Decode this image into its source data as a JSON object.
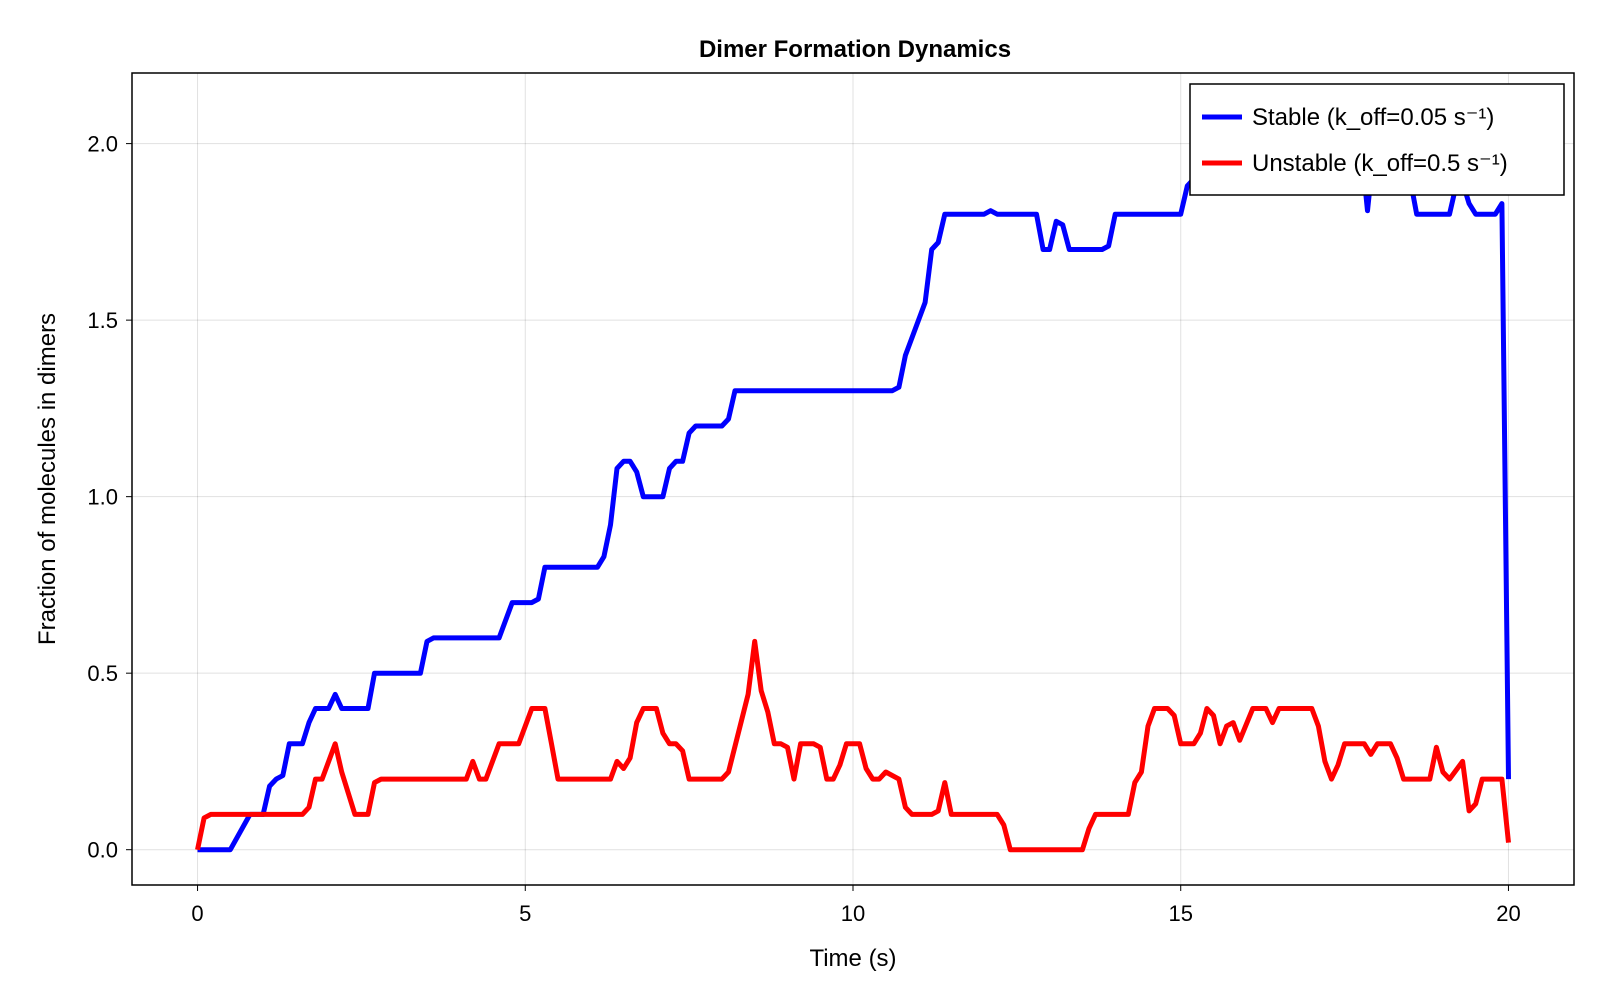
{
  "chart_data": {
    "type": "line",
    "title": "Dimer Formation Dynamics",
    "xlabel": "Time (s)",
    "ylabel": "Fraction of molecules in dimers",
    "xlim": [
      -1,
      21
    ],
    "ylim": [
      -0.1,
      2.2
    ],
    "xticks": [
      0,
      5,
      10,
      15,
      20
    ],
    "xtick_labels": [
      "0",
      "5",
      "10",
      "15",
      "20"
    ],
    "yticks": [
      0,
      0.5,
      1.0,
      1.5,
      2.0
    ],
    "ytick_labels": [
      "0.0",
      "0.5",
      "1.0",
      "1.5",
      "2.0"
    ],
    "grid": true,
    "legend_position": "top-right",
    "series": [
      {
        "name": "Stable (k_off=0.05 s⁻¹)",
        "color": "#0000ff",
        "points": [
          [
            0.0,
            0.0
          ],
          [
            0.5,
            0.0
          ],
          [
            0.8,
            0.1
          ],
          [
            1.0,
            0.1
          ],
          [
            1.1,
            0.18
          ],
          [
            1.2,
            0.2
          ],
          [
            1.3,
            0.21
          ],
          [
            1.4,
            0.3
          ],
          [
            1.6,
            0.3
          ],
          [
            1.7,
            0.36
          ],
          [
            1.8,
            0.4
          ],
          [
            2.0,
            0.4
          ],
          [
            2.1,
            0.44
          ],
          [
            2.2,
            0.4
          ],
          [
            2.6,
            0.4
          ],
          [
            2.7,
            0.5
          ],
          [
            3.4,
            0.5
          ],
          [
            3.5,
            0.59
          ],
          [
            3.6,
            0.6
          ],
          [
            4.6,
            0.6
          ],
          [
            4.8,
            0.7
          ],
          [
            5.1,
            0.7
          ],
          [
            5.2,
            0.71
          ],
          [
            5.3,
            0.8
          ],
          [
            6.1,
            0.8
          ],
          [
            6.2,
            0.83
          ],
          [
            6.3,
            0.92
          ],
          [
            6.4,
            1.08
          ],
          [
            6.5,
            1.1
          ],
          [
            6.6,
            1.1
          ],
          [
            6.7,
            1.07
          ],
          [
            6.8,
            1.0
          ],
          [
            7.1,
            1.0
          ],
          [
            7.2,
            1.08
          ],
          [
            7.3,
            1.1
          ],
          [
            7.4,
            1.1
          ],
          [
            7.5,
            1.18
          ],
          [
            7.6,
            1.2
          ],
          [
            8.0,
            1.2
          ],
          [
            8.1,
            1.22
          ],
          [
            8.2,
            1.3
          ],
          [
            10.6,
            1.3
          ],
          [
            10.7,
            1.31
          ],
          [
            10.8,
            1.4
          ],
          [
            11.1,
            1.55
          ],
          [
            11.2,
            1.7
          ],
          [
            11.3,
            1.72
          ],
          [
            11.4,
            1.8
          ],
          [
            12.0,
            1.8
          ],
          [
            12.1,
            1.81
          ],
          [
            12.2,
            1.8
          ],
          [
            12.8,
            1.8
          ],
          [
            12.9,
            1.7
          ],
          [
            13.0,
            1.7
          ],
          [
            13.1,
            1.78
          ],
          [
            13.2,
            1.77
          ],
          [
            13.3,
            1.7
          ],
          [
            13.8,
            1.7
          ],
          [
            13.9,
            1.71
          ],
          [
            14.0,
            1.8
          ],
          [
            15.0,
            1.8
          ],
          [
            15.1,
            1.88
          ],
          [
            15.2,
            1.9
          ],
          [
            15.3,
            1.9
          ],
          [
            17.8,
            1.9
          ],
          [
            17.85,
            1.81
          ],
          [
            17.9,
            1.9
          ],
          [
            18.5,
            1.9
          ],
          [
            18.6,
            1.8
          ],
          [
            19.1,
            1.8
          ],
          [
            19.2,
            1.88
          ],
          [
            19.3,
            1.89
          ],
          [
            19.4,
            1.83
          ],
          [
            19.5,
            1.8
          ],
          [
            19.8,
            1.8
          ],
          [
            19.9,
            1.83
          ],
          [
            20.0,
            0.2
          ]
        ]
      },
      {
        "name": "Unstable (k_off=0.5 s⁻¹)",
        "color": "#ff0000",
        "points": [
          [
            0.0,
            0.0
          ],
          [
            0.1,
            0.09
          ],
          [
            0.2,
            0.1
          ],
          [
            1.6,
            0.1
          ],
          [
            1.7,
            0.12
          ],
          [
            1.8,
            0.2
          ],
          [
            1.9,
            0.2
          ],
          [
            2.1,
            0.3
          ],
          [
            2.2,
            0.22
          ],
          [
            2.4,
            0.1
          ],
          [
            2.6,
            0.1
          ],
          [
            2.7,
            0.19
          ],
          [
            2.8,
            0.2
          ],
          [
            4.1,
            0.2
          ],
          [
            4.2,
            0.25
          ],
          [
            4.3,
            0.2
          ],
          [
            4.4,
            0.2
          ],
          [
            4.6,
            0.3
          ],
          [
            4.9,
            0.3
          ],
          [
            5.1,
            0.4
          ],
          [
            5.3,
            0.4
          ],
          [
            5.4,
            0.3
          ],
          [
            5.5,
            0.2
          ],
          [
            6.3,
            0.2
          ],
          [
            6.4,
            0.25
          ],
          [
            6.5,
            0.23
          ],
          [
            6.6,
            0.26
          ],
          [
            6.7,
            0.36
          ],
          [
            6.8,
            0.4
          ],
          [
            7.0,
            0.4
          ],
          [
            7.1,
            0.33
          ],
          [
            7.2,
            0.3
          ],
          [
            7.3,
            0.3
          ],
          [
            7.4,
            0.28
          ],
          [
            7.5,
            0.2
          ],
          [
            8.0,
            0.2
          ],
          [
            8.1,
            0.22
          ],
          [
            8.4,
            0.44
          ],
          [
            8.5,
            0.59
          ],
          [
            8.6,
            0.45
          ],
          [
            8.7,
            0.39
          ],
          [
            8.8,
            0.3
          ],
          [
            8.9,
            0.3
          ],
          [
            9.0,
            0.29
          ],
          [
            9.1,
            0.2
          ],
          [
            9.2,
            0.3
          ],
          [
            9.4,
            0.3
          ],
          [
            9.5,
            0.29
          ],
          [
            9.6,
            0.2
          ],
          [
            9.7,
            0.2
          ],
          [
            9.8,
            0.24
          ],
          [
            9.9,
            0.3
          ],
          [
            10.1,
            0.3
          ],
          [
            10.2,
            0.23
          ],
          [
            10.3,
            0.2
          ],
          [
            10.4,
            0.2
          ],
          [
            10.5,
            0.22
          ],
          [
            10.7,
            0.2
          ],
          [
            10.8,
            0.12
          ],
          [
            10.9,
            0.1
          ],
          [
            11.2,
            0.1
          ],
          [
            11.3,
            0.11
          ],
          [
            11.4,
            0.19
          ],
          [
            11.5,
            0.1
          ],
          [
            12.2,
            0.1
          ],
          [
            12.3,
            0.07
          ],
          [
            12.4,
            0.0
          ],
          [
            13.5,
            0.0
          ],
          [
            13.6,
            0.06
          ],
          [
            13.7,
            0.1
          ],
          [
            14.2,
            0.1
          ],
          [
            14.3,
            0.19
          ],
          [
            14.4,
            0.22
          ],
          [
            14.5,
            0.35
          ],
          [
            14.6,
            0.4
          ],
          [
            14.8,
            0.4
          ],
          [
            14.9,
            0.38
          ],
          [
            15.0,
            0.3
          ],
          [
            15.2,
            0.3
          ],
          [
            15.3,
            0.33
          ],
          [
            15.4,
            0.4
          ],
          [
            15.5,
            0.38
          ],
          [
            15.6,
            0.3
          ],
          [
            15.7,
            0.35
          ],
          [
            15.8,
            0.36
          ],
          [
            15.9,
            0.31
          ],
          [
            16.1,
            0.4
          ],
          [
            16.3,
            0.4
          ],
          [
            16.4,
            0.36
          ],
          [
            16.5,
            0.4
          ],
          [
            17.0,
            0.4
          ],
          [
            17.1,
            0.35
          ],
          [
            17.2,
            0.25
          ],
          [
            17.3,
            0.2
          ],
          [
            17.4,
            0.24
          ],
          [
            17.5,
            0.3
          ],
          [
            17.8,
            0.3
          ],
          [
            17.9,
            0.27
          ],
          [
            18.0,
            0.3
          ],
          [
            18.2,
            0.3
          ],
          [
            18.3,
            0.26
          ],
          [
            18.4,
            0.2
          ],
          [
            18.8,
            0.2
          ],
          [
            18.9,
            0.29
          ],
          [
            19.0,
            0.22
          ],
          [
            19.1,
            0.2
          ],
          [
            19.3,
            0.25
          ],
          [
            19.4,
            0.11
          ],
          [
            19.5,
            0.13
          ],
          [
            19.6,
            0.2
          ],
          [
            19.9,
            0.2
          ],
          [
            20.0,
            0.02
          ]
        ]
      }
    ]
  }
}
